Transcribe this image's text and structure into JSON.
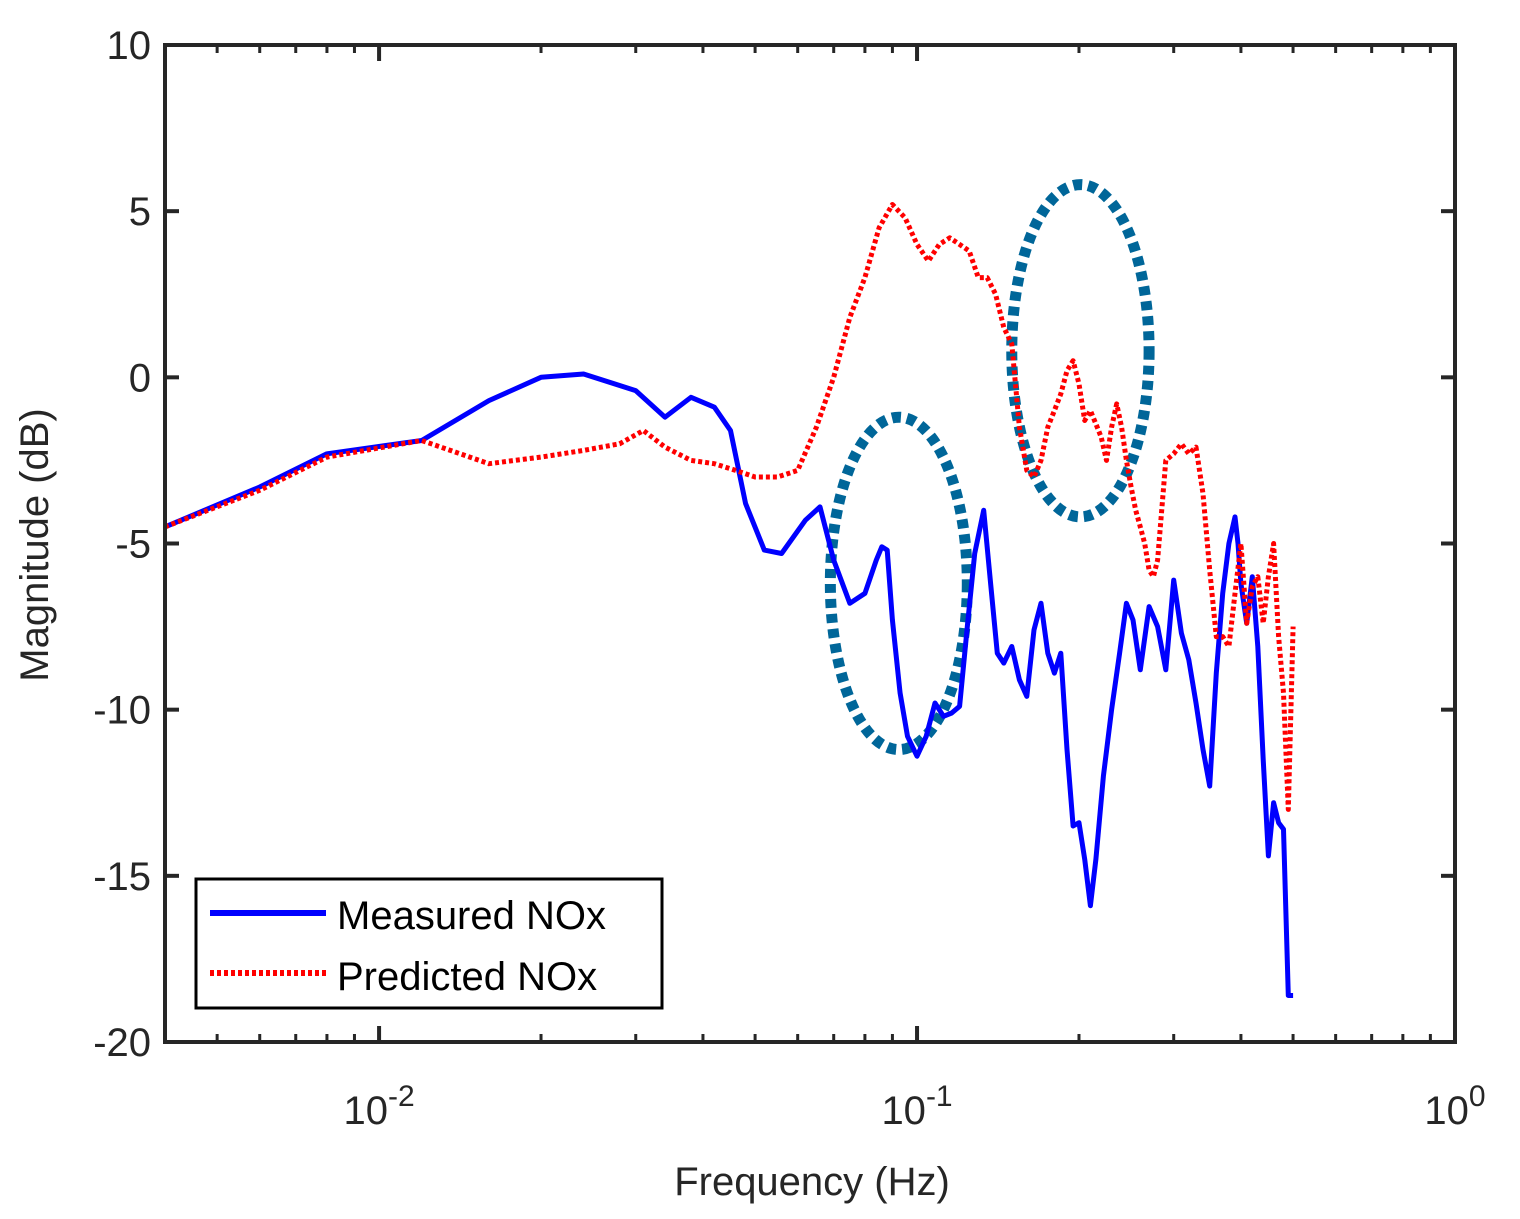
{
  "chart_data": {
    "type": "line",
    "title": "",
    "xlabel": "Frequency (Hz)",
    "ylabel": "Magnitude (dB)",
    "xscale": "log",
    "xlim": [
      0.004,
      1
    ],
    "ylim": [
      -20,
      10
    ],
    "x_ticks": [
      {
        "value": 0.01,
        "base": "10",
        "exp": "-2"
      },
      {
        "value": 0.1,
        "base": "10",
        "exp": "-1"
      },
      {
        "value": 1,
        "base": "10",
        "exp": "0"
      }
    ],
    "y_ticks": [
      {
        "value": 10,
        "label": "10"
      },
      {
        "value": 5,
        "label": "5"
      },
      {
        "value": 0,
        "label": "0"
      },
      {
        "value": -5,
        "label": "-5"
      },
      {
        "value": -10,
        "label": "-10"
      },
      {
        "value": -15,
        "label": "-15"
      },
      {
        "value": -20,
        "label": "-20"
      }
    ],
    "grid": false,
    "legend_position": "bottom-left",
    "series": [
      {
        "name": "Measured NOx",
        "color": "#0000ff",
        "style": "solid",
        "x": [
          0.004,
          0.006,
          0.008,
          0.012,
          0.016,
          0.02,
          0.024,
          0.03,
          0.034,
          0.038,
          0.042,
          0.045,
          0.048,
          0.052,
          0.056,
          0.062,
          0.066,
          0.07,
          0.075,
          0.08,
          0.084,
          0.086,
          0.088,
          0.09,
          0.093,
          0.096,
          0.1,
          0.104,
          0.108,
          0.112,
          0.116,
          0.12,
          0.124,
          0.128,
          0.133,
          0.137,
          0.141,
          0.145,
          0.15,
          0.155,
          0.16,
          0.165,
          0.17,
          0.175,
          0.18,
          0.185,
          0.19,
          0.195,
          0.2,
          0.205,
          0.21,
          0.215,
          0.222,
          0.23,
          0.238,
          0.245,
          0.252,
          0.26,
          0.27,
          0.28,
          0.29,
          0.3,
          0.31,
          0.32,
          0.33,
          0.34,
          0.35,
          0.36,
          0.37,
          0.38,
          0.39,
          0.395,
          0.4,
          0.41,
          0.42,
          0.43,
          0.44,
          0.45,
          0.46,
          0.47,
          0.48,
          0.49,
          0.5
        ],
        "y": [
          -4.5,
          -3.3,
          -2.3,
          -1.9,
          -0.7,
          0.0,
          0.1,
          -0.4,
          -1.2,
          -0.6,
          -0.9,
          -1.6,
          -3.8,
          -5.2,
          -5.3,
          -4.3,
          -3.9,
          -5.5,
          -6.8,
          -6.5,
          -5.5,
          -5.1,
          -5.2,
          -7.3,
          -9.5,
          -10.8,
          -11.4,
          -10.8,
          -9.8,
          -10.2,
          -10.1,
          -9.9,
          -7.5,
          -5.3,
          -4.0,
          -6.2,
          -8.3,
          -8.6,
          -8.1,
          -9.1,
          -9.6,
          -7.6,
          -6.8,
          -8.3,
          -8.9,
          -8.3,
          -11.2,
          -13.5,
          -13.4,
          -14.5,
          -15.9,
          -14.5,
          -12.0,
          -10.0,
          -8.3,
          -6.8,
          -7.3,
          -8.8,
          -6.9,
          -7.5,
          -8.8,
          -6.1,
          -7.7,
          -8.5,
          -9.8,
          -11.2,
          -12.3,
          -8.9,
          -6.5,
          -5.0,
          -4.2,
          -5.0,
          -6.2,
          -7.4,
          -6.0,
          -8.1,
          -11.5,
          -14.4,
          -12.8,
          -13.4,
          -13.6,
          -18.6,
          -18.6
        ]
      },
      {
        "name": "Predicted NOx",
        "color": "#ff0000",
        "style": "dotted",
        "x": [
          0.004,
          0.006,
          0.008,
          0.012,
          0.016,
          0.02,
          0.024,
          0.028,
          0.031,
          0.034,
          0.038,
          0.042,
          0.046,
          0.05,
          0.055,
          0.06,
          0.065,
          0.07,
          0.075,
          0.08,
          0.085,
          0.09,
          0.095,
          0.1,
          0.105,
          0.11,
          0.115,
          0.12,
          0.125,
          0.13,
          0.135,
          0.14,
          0.145,
          0.15,
          0.155,
          0.16,
          0.165,
          0.17,
          0.175,
          0.18,
          0.185,
          0.19,
          0.195,
          0.2,
          0.205,
          0.21,
          0.215,
          0.22,
          0.225,
          0.23,
          0.235,
          0.24,
          0.245,
          0.25,
          0.255,
          0.26,
          0.265,
          0.27,
          0.275,
          0.28,
          0.29,
          0.3,
          0.31,
          0.32,
          0.33,
          0.34,
          0.35,
          0.36,
          0.37,
          0.38,
          0.39,
          0.4,
          0.41,
          0.42,
          0.43,
          0.44,
          0.45,
          0.46,
          0.47,
          0.48,
          0.49,
          0.5
        ],
        "y": [
          -4.5,
          -3.4,
          -2.4,
          -1.9,
          -2.6,
          -2.4,
          -2.2,
          -2.0,
          -1.6,
          -2.1,
          -2.5,
          -2.6,
          -2.8,
          -3.0,
          -3.0,
          -2.8,
          -1.5,
          0.0,
          1.8,
          3.0,
          4.5,
          5.2,
          4.8,
          4.0,
          3.5,
          4.0,
          4.2,
          4.0,
          3.8,
          3.0,
          3.0,
          2.5,
          1.5,
          1.0,
          -1.5,
          -2.8,
          -3.0,
          -2.5,
          -1.5,
          -1.0,
          -0.5,
          0.2,
          0.5,
          -0.2,
          -1.3,
          -1.0,
          -1.4,
          -1.8,
          -2.5,
          -1.5,
          -0.8,
          -1.5,
          -2.5,
          -3.3,
          -4.0,
          -4.5,
          -5.0,
          -5.8,
          -6.0,
          -5.5,
          -2.5,
          -2.3,
          -2.0,
          -2.3,
          -2.1,
          -3.5,
          -5.8,
          -7.8,
          -7.8,
          -8.1,
          -6.5,
          -5.0,
          -7.4,
          -6.3,
          -6.0,
          -7.4,
          -6.0,
          -5.0,
          -7.8,
          -9.5,
          -13.0,
          -7.5
        ]
      }
    ],
    "annotations": [
      {
        "type": "dotted-ellipse",
        "color": "#006699",
        "center_x": 0.09,
        "center_y": -6.2,
        "semi_y": 5.0,
        "x_min": 0.069,
        "x_max": 0.124
      },
      {
        "type": "dotted-ellipse",
        "color": "#006699",
        "center_x": 0.2,
        "center_y": 0.8,
        "semi_y": 5.0,
        "x_min": 0.15,
        "x_max": 0.27
      }
    ]
  }
}
